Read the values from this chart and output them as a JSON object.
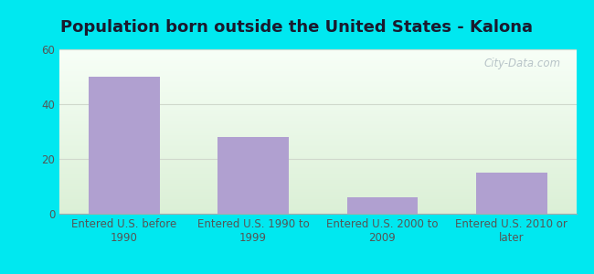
{
  "title": "Population born outside the United States - Kalona",
  "categories": [
    "Entered U.S. before\n1990",
    "Entered U.S. 1990 to\n1999",
    "Entered U.S. 2000 to\n2009",
    "Entered U.S. 2010 or\nlater"
  ],
  "values": [
    50,
    28,
    6,
    15
  ],
  "bar_color": "#b0a0d0",
  "ylim": [
    0,
    60
  ],
  "yticks": [
    0,
    20,
    40,
    60
  ],
  "background_outer": "#00e8f0",
  "background_inner_top": "#f8fffa",
  "background_inner_bottom": "#dff0d8",
  "grid_color": "#d0d8cc",
  "title_fontsize": 13,
  "tick_fontsize": 8.5,
  "watermark_text": "City-Data.com",
  "watermark_color": "#b8c4c8",
  "title_color": "#1a1a2e"
}
